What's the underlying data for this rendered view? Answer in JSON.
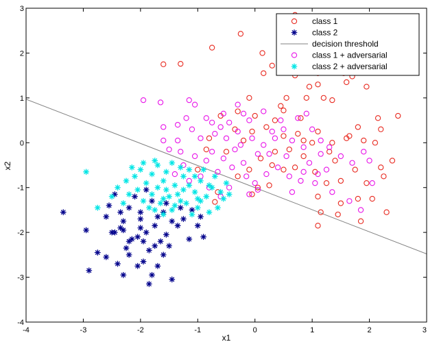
{
  "chart_data": {
    "type": "scatter",
    "xlabel": "x1",
    "ylabel": "x2",
    "xlim": [
      -4,
      3
    ],
    "ylim": [
      -4,
      3
    ],
    "xticks": [
      "-4",
      "-3",
      "-2",
      "-1",
      "0",
      "1",
      "2",
      "3"
    ],
    "yticks": [
      "-4",
      "-3",
      "-2",
      "-1",
      "0",
      "1",
      "2",
      "3"
    ],
    "legend_position": "top-right",
    "grid": false,
    "series": [
      {
        "name": "class 1",
        "marker": "circle",
        "color": "#e8281e",
        "points": [
          [
            0.7,
            2.85
          ],
          [
            -0.25,
            2.43
          ],
          [
            1.08,
            2.55
          ],
          [
            1.23,
            2.15
          ],
          [
            0.13,
            2.0
          ],
          [
            -0.75,
            2.12
          ],
          [
            -1.6,
            1.75
          ],
          [
            -1.3,
            1.76
          ],
          [
            0.15,
            1.55
          ],
          [
            0.3,
            1.72
          ],
          [
            0.7,
            1.5
          ],
          [
            1.1,
            1.55
          ],
          [
            1.55,
            1.55
          ],
          [
            1.7,
            1.48
          ],
          [
            1.9,
            1.7
          ],
          [
            1.95,
            1.25
          ],
          [
            1.6,
            1.35
          ],
          [
            1.1,
            1.3
          ],
          [
            0.95,
            1.25
          ],
          [
            0.9,
            1.0
          ],
          [
            1.35,
            0.95
          ],
          [
            1.2,
            1.0
          ],
          [
            0.55,
            1.0
          ],
          [
            0.45,
            0.82
          ],
          [
            0.5,
            0.72
          ],
          [
            0.35,
            0.5
          ],
          [
            0.0,
            0.6
          ],
          [
            -0.3,
            0.7
          ],
          [
            -0.6,
            0.6
          ],
          [
            -0.35,
            0.3
          ],
          [
            -0.05,
            0.25
          ],
          [
            0.2,
            0.35
          ],
          [
            0.5,
            0.15
          ],
          [
            0.75,
            0.2
          ],
          [
            0.85,
            0.05
          ],
          [
            1.0,
            0.0
          ],
          [
            1.1,
            0.25
          ],
          [
            1.35,
            0.0
          ],
          [
            1.6,
            0.1
          ],
          [
            1.8,
            0.35
          ],
          [
            2.2,
            0.3
          ],
          [
            2.15,
            0.55
          ],
          [
            2.5,
            0.6
          ],
          [
            1.65,
            0.15
          ],
          [
            1.9,
            0.05
          ],
          [
            0.6,
            -0.15
          ],
          [
            0.35,
            -0.2
          ],
          [
            0.1,
            -0.35
          ],
          [
            -0.1,
            -0.6
          ],
          [
            -0.3,
            -0.75
          ],
          [
            -0.65,
            -1.1
          ],
          [
            -0.7,
            -1.32
          ],
          [
            -0.05,
            -1.15
          ],
          [
            0.05,
            -1.0
          ],
          [
            0.25,
            -0.95
          ],
          [
            0.5,
            -0.6
          ],
          [
            0.7,
            -0.55
          ],
          [
            1.05,
            -0.65
          ],
          [
            1.25,
            -0.9
          ],
          [
            1.5,
            -0.85
          ],
          [
            1.1,
            -1.2
          ],
          [
            1.15,
            -1.55
          ],
          [
            1.1,
            -1.85
          ],
          [
            1.5,
            -1.35
          ],
          [
            1.8,
            -1.25
          ],
          [
            2.05,
            -1.25
          ],
          [
            1.85,
            -1.75
          ],
          [
            2.3,
            -1.55
          ],
          [
            2.25,
            -0.75
          ],
          [
            1.95,
            -0.9
          ],
          [
            2.2,
            -0.55
          ],
          [
            2.4,
            -0.4
          ],
          [
            1.75,
            -0.6
          ],
          [
            1.4,
            -0.4
          ],
          [
            0.85,
            -0.3
          ],
          [
            0.3,
            -0.5
          ],
          [
            -0.5,
            -0.2
          ],
          [
            -0.8,
            0.1
          ],
          [
            -1.0,
            -0.6
          ],
          [
            -0.85,
            -0.15
          ],
          [
            -0.2,
            0.05
          ],
          [
            -0.1,
            1.0
          ],
          [
            0.8,
            0.55
          ],
          [
            1.3,
            -0.2
          ],
          [
            1.45,
            -1.6
          ],
          [
            2.1,
            0.0
          ]
        ]
      },
      {
        "name": "class 2",
        "marker": "asterisk",
        "color": "#00008b",
        "points": [
          [
            -3.35,
            -1.55
          ],
          [
            -2.95,
            -1.95
          ],
          [
            -2.75,
            -2.45
          ],
          [
            -2.9,
            -2.85
          ],
          [
            -2.6,
            -2.55
          ],
          [
            -2.5,
            -2.0
          ],
          [
            -2.35,
            -1.9
          ],
          [
            -2.4,
            -2.7
          ],
          [
            -2.25,
            -2.35
          ],
          [
            -2.05,
            -2.1
          ],
          [
            -2.2,
            -2.5
          ],
          [
            -1.95,
            -2.65
          ],
          [
            -1.85,
            -2.4
          ],
          [
            -1.9,
            -2.0
          ],
          [
            -2.0,
            -1.7
          ],
          [
            -1.75,
            -1.85
          ],
          [
            -1.65,
            -2.2
          ],
          [
            -1.55,
            -2.05
          ],
          [
            -1.6,
            -1.55
          ],
          [
            -1.45,
            -1.75
          ],
          [
            -1.3,
            -1.45
          ],
          [
            -1.35,
            -1.85
          ],
          [
            -1.25,
            -1.7
          ],
          [
            -1.1,
            -1.5
          ],
          [
            -1.0,
            -1.85
          ],
          [
            -0.95,
            -1.65
          ],
          [
            -0.9,
            -2.1
          ],
          [
            -1.8,
            -1.3
          ],
          [
            -1.9,
            -1.05
          ],
          [
            -2.1,
            -1.2
          ],
          [
            -2.2,
            -1.45
          ],
          [
            -2.35,
            -1.55
          ],
          [
            -2.55,
            -1.4
          ],
          [
            -2.45,
            -1.15
          ],
          [
            -2.3,
            -1.95
          ],
          [
            -2.15,
            -2.15
          ],
          [
            -2.05,
            -2.75
          ],
          [
            -2.3,
            -2.95
          ],
          [
            -1.85,
            -3.15
          ],
          [
            -1.45,
            -3.05
          ],
          [
            -1.8,
            -2.95
          ],
          [
            -1.7,
            -2.75
          ],
          [
            -1.55,
            -1.35
          ],
          [
            -2.0,
            -1.55
          ],
          [
            -1.7,
            -1.65
          ],
          [
            -2.45,
            -2.0
          ],
          [
            -2.6,
            -1.65
          ],
          [
            -2.0,
            -1.9
          ],
          [
            -1.6,
            -2.5
          ],
          [
            -1.75,
            -2.3
          ],
          [
            -1.5,
            -2.3
          ],
          [
            -1.15,
            -2.15
          ],
          [
            -2.2,
            -2.2
          ],
          [
            -2.3,
            -1.75
          ],
          [
            -1.95,
            -2.2
          ]
        ]
      },
      {
        "name": "class 1 + adversarial",
        "marker": "circle",
        "color": "#e812e8",
        "points": [
          [
            -1.95,
            0.95
          ],
          [
            -1.65,
            0.9
          ],
          [
            -1.15,
            0.95
          ],
          [
            -1.05,
            0.85
          ],
          [
            -0.85,
            0.55
          ],
          [
            -0.6,
            0.35
          ],
          [
            -0.45,
            0.45
          ],
          [
            -0.3,
            0.25
          ],
          [
            -0.5,
            0.1
          ],
          [
            -0.2,
            0.65
          ],
          [
            -0.1,
            0.5
          ],
          [
            -1.6,
            0.35
          ],
          [
            -1.35,
            0.4
          ],
          [
            -1.2,
            0.55
          ],
          [
            -1.35,
            0.05
          ],
          [
            -1.1,
            0.3
          ],
          [
            -0.95,
            0.1
          ],
          [
            -0.7,
            0.2
          ],
          [
            -0.75,
            -0.2
          ],
          [
            -0.55,
            -0.35
          ],
          [
            -0.35,
            -0.15
          ],
          [
            -0.2,
            -0.45
          ],
          [
            0.05,
            -0.25
          ],
          [
            0.15,
            -0.05
          ],
          [
            0.35,
            0.1
          ],
          [
            0.55,
            -0.3
          ],
          [
            0.65,
            0.05
          ],
          [
            0.85,
            -0.1
          ],
          [
            0.95,
            -0.45
          ],
          [
            1.15,
            -0.25
          ],
          [
            1.25,
            -0.6
          ],
          [
            1.05,
            -0.9
          ],
          [
            0.85,
            -0.65
          ],
          [
            0.6,
            -0.75
          ],
          [
            0.4,
            -0.55
          ],
          [
            0.2,
            -0.7
          ],
          [
            0.0,
            -0.9
          ],
          [
            -0.15,
            -0.75
          ],
          [
            -0.4,
            -0.55
          ],
          [
            -0.65,
            -0.65
          ],
          [
            -0.85,
            -0.4
          ],
          [
            -1.05,
            -0.3
          ],
          [
            -1.25,
            -0.5
          ],
          [
            -1.5,
            -0.15
          ],
          [
            -1.6,
            0.05
          ],
          [
            -1.3,
            -0.2
          ],
          [
            -0.05,
            0.1
          ],
          [
            0.25,
            -0.25
          ],
          [
            0.5,
            0.3
          ],
          [
            0.75,
            0.55
          ],
          [
            0.45,
            0.5
          ],
          [
            0.15,
            0.7
          ],
          [
            -0.3,
            0.85
          ],
          [
            -0.55,
            0.65
          ],
          [
            1.0,
            0.3
          ],
          [
            1.15,
            0.05
          ],
          [
            1.3,
            -0.1
          ],
          [
            1.5,
            -0.3
          ],
          [
            1.7,
            -0.45
          ],
          [
            1.9,
            -0.2
          ],
          [
            2.0,
            -0.4
          ],
          [
            2.05,
            -0.9
          ],
          [
            1.85,
            -1.5
          ],
          [
            1.65,
            -1.3
          ],
          [
            1.35,
            -1.1
          ],
          [
            1.1,
            -0.7
          ],
          [
            0.8,
            -0.85
          ],
          [
            0.65,
            -1.1
          ],
          [
            -0.1,
            -1.15
          ],
          [
            0.05,
            -1.05
          ],
          [
            -0.45,
            -1.0
          ],
          [
            -0.6,
            -1.2
          ],
          [
            -0.8,
            -1.0
          ],
          [
            -0.95,
            -0.75
          ],
          [
            -1.15,
            -0.85
          ],
          [
            -1.4,
            -0.7
          ],
          [
            -0.25,
            -0.05
          ],
          [
            0.3,
            0.25
          ],
          [
            0.9,
            0.65
          ],
          [
            -0.75,
            0.45
          ]
        ]
      },
      {
        "name": "class 2 + adversarial",
        "marker": "asterisk",
        "color": "#00e5e5",
        "points": [
          [
            -2.95,
            -0.65
          ],
          [
            -2.75,
            -1.45
          ],
          [
            -2.4,
            -1.0
          ],
          [
            -2.25,
            -0.85
          ],
          [
            -2.1,
            -0.75
          ],
          [
            -2.0,
            -0.6
          ],
          [
            -1.9,
            -0.9
          ],
          [
            -1.8,
            -0.7
          ],
          [
            -1.7,
            -1.0
          ],
          [
            -1.6,
            -0.85
          ],
          [
            -1.55,
            -0.65
          ],
          [
            -1.45,
            -0.45
          ],
          [
            -1.4,
            -0.95
          ],
          [
            -1.35,
            -1.15
          ],
          [
            -1.25,
            -0.75
          ],
          [
            -1.2,
            -1.35
          ],
          [
            -1.15,
            -0.95
          ],
          [
            -1.05,
            -1.1
          ],
          [
            -1.0,
            -1.45
          ],
          [
            -0.95,
            -0.85
          ],
          [
            -0.85,
            -1.2
          ],
          [
            -0.75,
            -1.0
          ],
          [
            -0.65,
            -1.45
          ],
          [
            -0.55,
            -1.25
          ],
          [
            -0.45,
            -1.15
          ],
          [
            -0.8,
            -1.55
          ],
          [
            -1.1,
            -1.6
          ],
          [
            -1.3,
            -1.3
          ],
          [
            -1.5,
            -1.2
          ],
          [
            -1.65,
            -1.35
          ],
          [
            -1.8,
            -1.15
          ],
          [
            -1.95,
            -1.3
          ],
          [
            -2.05,
            -1.05
          ],
          [
            -2.2,
            -1.15
          ],
          [
            -2.3,
            -1.35
          ],
          [
            -1.75,
            -1.5
          ],
          [
            -1.6,
            -1.6
          ],
          [
            -1.45,
            -1.5
          ],
          [
            -0.95,
            -1.3
          ],
          [
            -0.7,
            -0.75
          ],
          [
            -0.5,
            -0.9
          ],
          [
            -1.15,
            -0.6
          ],
          [
            -1.3,
            -0.55
          ],
          [
            -1.95,
            -0.45
          ],
          [
            -2.15,
            -0.55
          ],
          [
            -1.75,
            -0.4
          ],
          [
            -1.55,
            -1.05
          ],
          [
            -1.25,
            -1.05
          ],
          [
            -1.0,
            -1.25
          ],
          [
            -0.8,
            -0.95
          ],
          [
            -1.85,
            -1.45
          ],
          [
            -1.6,
            -1.25
          ],
          [
            -1.4,
            -1.4
          ],
          [
            -1.05,
            -0.75
          ],
          [
            -0.6,
            -1.1
          ],
          [
            -0.9,
            -0.6
          ],
          [
            -2.5,
            -1.2
          ],
          [
            -1.7,
            -0.5
          ]
        ]
      }
    ],
    "lines": [
      {
        "name": "decision threshold",
        "color": "#808080",
        "points": [
          [
            -4,
            0.97
          ],
          [
            3,
            -2.48
          ]
        ]
      }
    ]
  }
}
